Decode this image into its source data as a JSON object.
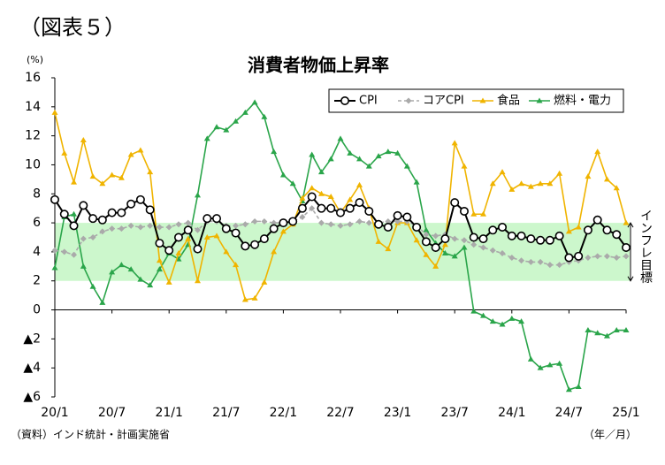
{
  "chart_data": {
    "type": "line",
    "figure_label": "（図表５）",
    "title": "消費者物価上昇率",
    "y_unit": "(%)",
    "source": "（資料）インド統計・計画実施省",
    "x_unit": "（年／月）",
    "categories": [
      "20/1",
      null,
      null,
      null,
      null,
      null,
      "20/7",
      null,
      null,
      null,
      null,
      null,
      "21/1",
      null,
      null,
      null,
      null,
      null,
      "21/7",
      null,
      null,
      null,
      null,
      null,
      "22/1",
      null,
      null,
      null,
      null,
      null,
      "22/7",
      null,
      null,
      null,
      null,
      null,
      "23/1",
      null,
      null,
      null,
      null,
      null,
      "23/7",
      null,
      null,
      null,
      null,
      null,
      "24/1",
      null,
      null,
      null,
      null,
      null,
      "24/7",
      null,
      null,
      null,
      null,
      null,
      "25/1"
    ],
    "ylim": [
      -6,
      16
    ],
    "yticks": [
      {
        "value": -6,
        "label": "▲6"
      },
      {
        "value": -4,
        "label": "▲4"
      },
      {
        "value": -2,
        "label": "▲2"
      },
      0,
      2,
      4,
      6,
      8,
      10,
      12,
      14,
      16
    ],
    "band": {
      "range": [
        2,
        6
      ],
      "color": "#ccf7cc",
      "label": "インフレ目標"
    },
    "series": [
      {
        "name": "CPI",
        "color": "#000000",
        "marker": "circle",
        "dash": false,
        "values": [
          7.6,
          6.6,
          5.8,
          7.2,
          6.3,
          6.2,
          6.7,
          6.7,
          7.3,
          7.6,
          6.9,
          4.6,
          4.1,
          5.0,
          5.5,
          4.2,
          6.3,
          6.3,
          5.6,
          5.3,
          4.4,
          4.5,
          4.9,
          5.6,
          6.0,
          6.1,
          7.0,
          7.8,
          7.0,
          7.0,
          6.7,
          7.0,
          7.4,
          6.8,
          5.9,
          5.7,
          6.5,
          6.4,
          5.7,
          4.7,
          4.3,
          4.9,
          7.4,
          6.8,
          5.0,
          4.9,
          5.5,
          5.7,
          5.1,
          5.1,
          4.9,
          4.8,
          4.8,
          5.1,
          3.6,
          3.7,
          5.5,
          6.2,
          5.5,
          5.2,
          4.3
        ]
      },
      {
        "name": "コアCPI",
        "color": "#aaaaaa",
        "marker": "diamond",
        "dash": true,
        "values": [
          4.1,
          4.0,
          3.8,
          4.9,
          5.0,
          5.4,
          5.6,
          5.6,
          5.8,
          5.7,
          5.8,
          5.7,
          5.7,
          5.9,
          6.0,
          5.5,
          6.1,
          6.1,
          5.8,
          5.8,
          5.9,
          6.1,
          6.1,
          6.0,
          6.0,
          6.1,
          6.4,
          7.0,
          6.0,
          5.9,
          5.8,
          5.9,
          6.1,
          6.0,
          6.0,
          6.1,
          6.1,
          6.1,
          5.8,
          5.2,
          5.1,
          5.2,
          4.9,
          4.8,
          4.5,
          4.3,
          4.1,
          3.9,
          3.6,
          3.4,
          3.3,
          3.3,
          3.1,
          3.1,
          3.3,
          3.4,
          3.6,
          3.7,
          3.7,
          3.6,
          3.7
        ]
      },
      {
        "name": "食品",
        "color": "#f0b400",
        "marker": "triangle",
        "dash": false,
        "values": [
          13.6,
          10.8,
          8.8,
          11.7,
          9.2,
          8.7,
          9.3,
          9.1,
          10.7,
          11.0,
          9.5,
          3.4,
          1.9,
          3.9,
          4.9,
          2.0,
          5.0,
          5.1,
          4.0,
          3.1,
          0.7,
          0.8,
          1.9,
          4.0,
          5.4,
          5.9,
          7.7,
          8.4,
          8.0,
          7.8,
          6.7,
          7.6,
          8.6,
          7.0,
          4.7,
          4.2,
          6.0,
          6.0,
          4.8,
          3.8,
          3.0,
          4.5,
          11.5,
          9.9,
          6.6,
          6.6,
          8.7,
          9.5,
          8.3,
          8.7,
          8.5,
          8.7,
          8.7,
          9.4,
          5.4,
          5.7,
          9.2,
          10.9,
          9.0,
          8.4,
          6.0
        ]
      },
      {
        "name": "燃料・電力",
        "color": "#2aa54a",
        "marker": "triangle",
        "dash": false,
        "values": [
          2.9,
          6.4,
          6.6,
          3.0,
          1.6,
          0.5,
          2.6,
          3.1,
          2.8,
          2.1,
          1.7,
          2.8,
          3.9,
          3.5,
          4.5,
          7.9,
          11.8,
          12.6,
          12.4,
          13.0,
          13.6,
          14.3,
          13.3,
          10.9,
          9.3,
          8.7,
          7.5,
          10.7,
          9.5,
          10.4,
          11.8,
          10.8,
          10.4,
          9.9,
          10.6,
          10.9,
          10.8,
          9.9,
          8.8,
          5.5,
          4.6,
          3.9,
          3.7,
          4.3,
          -0.1,
          -0.4,
          -0.8,
          -1.0,
          -0.6,
          -0.8,
          -3.4,
          -4.0,
          -3.8,
          -3.7,
          -5.5,
          -5.3,
          -1.4,
          -1.6,
          -1.8,
          -1.4,
          -1.4
        ]
      }
    ]
  }
}
